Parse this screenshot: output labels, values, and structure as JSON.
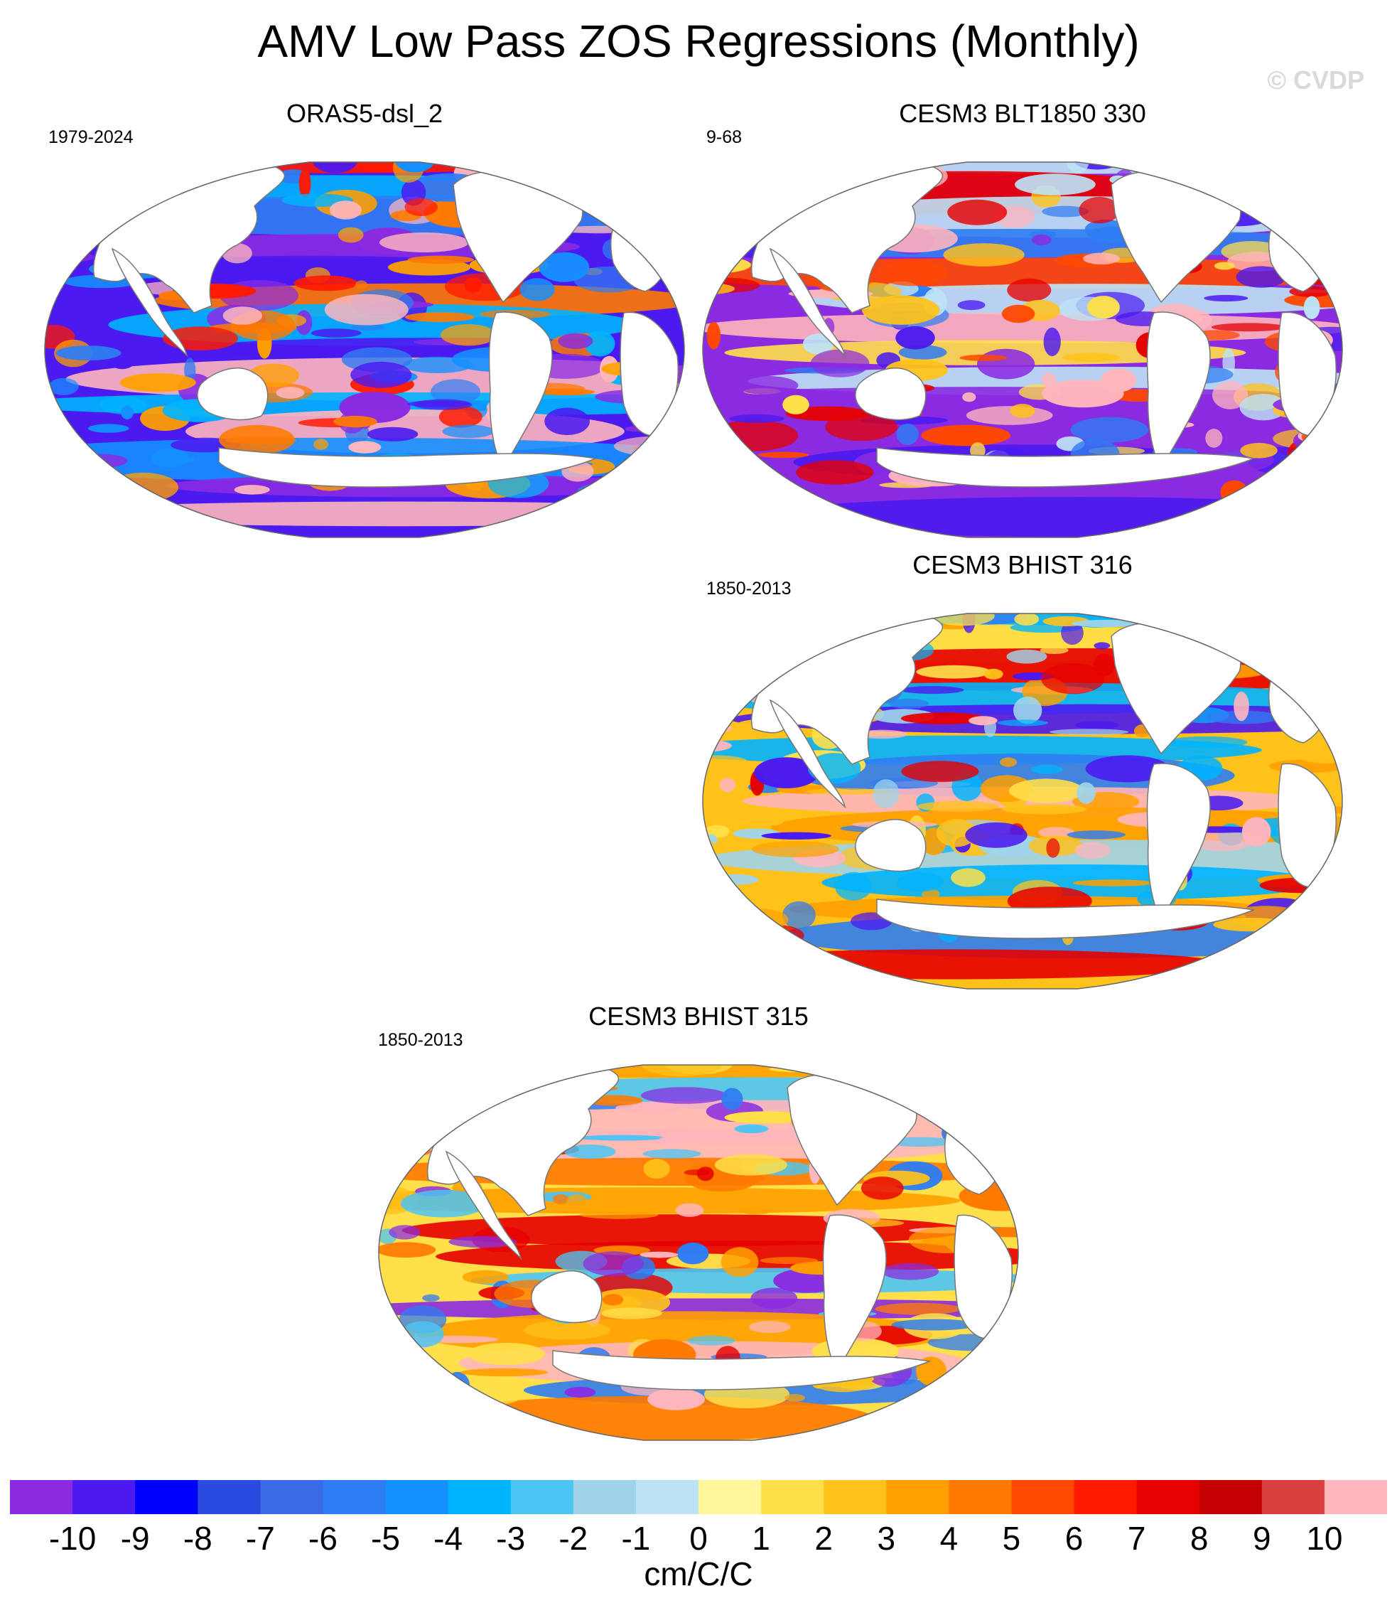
{
  "title": "AMV Low Pass ZOS Regressions (Monthly)",
  "copyright": "© CVDP",
  "chart_data": {
    "type": "map-panel-grid",
    "projection": "robinson-like global",
    "units": "cm/C/C",
    "panels": [
      {
        "name": "ORAS5-dsl_2",
        "period": "1979-2024",
        "position": "top-left"
      },
      {
        "name": "CESM3 BLT1850 330",
        "period": "9-68",
        "position": "top-right"
      },
      {
        "name": "CESM3 BHIST 316",
        "period": "1850-2013",
        "position": "middle-right"
      },
      {
        "name": "CESM3 BHIST 315",
        "period": "1850-2013",
        "position": "bottom-center"
      }
    ],
    "colorbar": {
      "levels": [
        "-10",
        "-9",
        "-8",
        "-7",
        "-6",
        "-5",
        "-4",
        "-3",
        "-2",
        "-1",
        "0",
        "1",
        "2",
        "3",
        "4",
        "5",
        "6",
        "7",
        "8",
        "9",
        "10"
      ],
      "colors": [
        "#8a2be2",
        "#4b1af0",
        "#0000ff",
        "#2a4be0",
        "#3a6ae6",
        "#2f7df2",
        "#1590ff",
        "#00b4ff",
        "#4cc4f4",
        "#9fd4ea",
        "#bde3f5",
        "#fff69a",
        "#ffe04a",
        "#ffc21a",
        "#ffa000",
        "#ff7a00",
        "#ff4800",
        "#ff1a00",
        "#e60000",
        "#c40000",
        "#d84040",
        "#ffb6bd"
      ]
    }
  }
}
